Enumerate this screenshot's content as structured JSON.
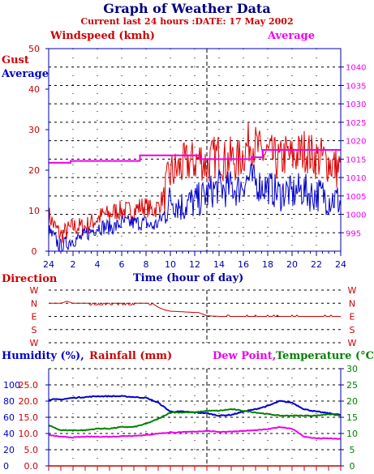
{
  "header": {
    "title": "Graph of Weather Data",
    "subtitle": "Current last 24 hours :DATE: 17 May 2002"
  },
  "colors": {
    "gust": "#dd0000",
    "average": "#0000cc",
    "pressure": "#ee00ee",
    "direction": "#cc0000",
    "humidity": "#0000cc",
    "rainfall": "#cc0000",
    "dew_point": "#ee00ee",
    "temperature": "#008000",
    "axis": "#0000aa"
  },
  "chart_data": [
    {
      "type": "line",
      "name": "wind",
      "legend": {
        "windspeed": "Windspeed (kmh)",
        "average": "Average",
        "gust": "Gust",
        "average_left": "Average"
      },
      "xlabel": "Time (hour of day)",
      "x_ticks": [
        "24",
        "2",
        "4",
        "6",
        "8",
        "10",
        "12",
        "14",
        "16",
        "18",
        "20",
        "22",
        "24"
      ],
      "xlim": [
        0,
        24
      ],
      "ylim_left": [
        0,
        50
      ],
      "y_ticks_left": [
        0,
        10,
        20,
        30,
        40,
        50
      ],
      "ylim_right": [
        990,
        1045
      ],
      "y_ticks_right": [
        995,
        1000,
        1005,
        1010,
        1015,
        1020,
        1025,
        1030,
        1035,
        1040
      ],
      "marker_x": 13,
      "series": [
        {
          "name": "Gust",
          "axis": "left",
          "x": [
            0,
            0.5,
            1,
            1.5,
            2,
            2.5,
            3,
            3.5,
            4,
            4.5,
            5,
            5.5,
            6,
            6.5,
            7,
            7.5,
            8,
            8.5,
            9,
            9.5,
            10,
            10.5,
            11,
            11.5,
            12,
            12.5,
            13,
            13.5,
            14,
            14.5,
            15,
            15.5,
            16,
            16.5,
            17,
            17.5,
            18,
            18.5,
            19,
            19.5,
            20,
            20.5,
            21,
            21.5,
            22,
            22.5,
            23,
            23.5,
            24
          ],
          "values": [
            9,
            6,
            4,
            5,
            6,
            6,
            6,
            7,
            8,
            9,
            9,
            10,
            10,
            10,
            10,
            11,
            11,
            10,
            11,
            14,
            19,
            20,
            21,
            22,
            22,
            23,
            21,
            23,
            24,
            22,
            23,
            22,
            24,
            27,
            26,
            24,
            24,
            23,
            22,
            24,
            23,
            24,
            25,
            24,
            23,
            23,
            22,
            21,
            20
          ]
        },
        {
          "name": "Average",
          "axis": "left",
          "x": [
            0,
            0.5,
            1,
            1.5,
            2,
            2.5,
            3,
            3.5,
            4,
            4.5,
            5,
            5.5,
            6,
            6.5,
            7,
            7.5,
            8,
            8.5,
            9,
            9.5,
            10,
            10.5,
            11,
            11.5,
            12,
            12.5,
            13,
            13.5,
            14,
            14.5,
            15,
            15.5,
            16,
            16.5,
            17,
            17.5,
            18,
            18.5,
            19,
            19.5,
            20,
            20.5,
            21,
            21.5,
            22,
            22.5,
            23,
            23.5,
            24
          ],
          "values": [
            5,
            3,
            1,
            2,
            3,
            3,
            4,
            5,
            6,
            6,
            6,
            6,
            7,
            7,
            7,
            7,
            7,
            6,
            7,
            9,
            13,
            12,
            11,
            12,
            12,
            13,
            14,
            15,
            16,
            15,
            16,
            15,
            17,
            18,
            17,
            16,
            16,
            15,
            14,
            15,
            14,
            15,
            15,
            14,
            14,
            14,
            13,
            13,
            12
          ]
        },
        {
          "name": "Pressure",
          "axis": "right",
          "x": [
            0,
            1.8,
            1.8,
            7.5,
            7.5,
            12.4,
            12.4,
            16.7,
            16.7,
            17.6,
            17.6,
            24
          ],
          "values": [
            1014,
            1014,
            1014.5,
            1014.5,
            1016,
            1016,
            1015,
            1015,
            1015.5,
            1015.5,
            1017.5,
            1017.5
          ]
        }
      ]
    },
    {
      "type": "line",
      "name": "direction",
      "legend": {
        "direction": "Direction"
      },
      "y_categories": [
        "W",
        "S",
        "E",
        "N",
        "W"
      ],
      "xlim": [
        0,
        24
      ],
      "marker_x": 13,
      "series": [
        {
          "name": "Direction",
          "x": [
            0,
            1,
            1.5,
            2,
            3,
            6,
            8.5,
            9,
            9.5,
            10,
            12,
            12.3,
            13,
            14,
            18,
            20,
            24
          ],
          "values": [
            3,
            3,
            3.15,
            3,
            3,
            3,
            3,
            2.7,
            2.5,
            2.4,
            2.3,
            2.3,
            2.05,
            2,
            2,
            2,
            2
          ]
        }
      ]
    },
    {
      "type": "line",
      "name": "humidity",
      "legend": {
        "humidity": "Humidity (%),",
        "rainfall": "Rainfall (mm)",
        "dew_point": "Dew Point,",
        "temperature": "Temperature (°C)"
      },
      "x_ticks": [
        "24",
        "2",
        "4",
        "6",
        "8",
        "10",
        "12",
        "14",
        "16",
        "18",
        "20",
        "22",
        "24"
      ],
      "xlim": [
        0,
        24
      ],
      "y_ticks_humidity": [
        0,
        20,
        40,
        60,
        80,
        100
      ],
      "y_ticks_rainfall": [
        "0.0",
        "5.0",
        "10.0",
        "15.0",
        "20.0",
        "25.0"
      ],
      "y_ticks_temperature": [
        0,
        5,
        10,
        15,
        20,
        25,
        30
      ],
      "ylim_temperature": [
        0,
        30
      ],
      "marker_x": 13,
      "series": [
        {
          "name": "Humidity",
          "axis": "humidity",
          "x": [
            0,
            1,
            2,
            3,
            4,
            5,
            6,
            7,
            8,
            9,
            10,
            11,
            12,
            13,
            14,
            15,
            16,
            17,
            18,
            19,
            20,
            21,
            22,
            23,
            24
          ],
          "values": [
            82,
            82,
            84,
            85,
            86,
            86,
            86,
            85,
            84,
            78,
            67,
            67,
            66,
            65,
            62,
            63,
            67,
            70,
            74,
            80,
            78,
            70,
            67,
            65,
            63
          ]
        },
        {
          "name": "Temperature",
          "axis": "temperature",
          "x": [
            0,
            1,
            2,
            3,
            4,
            5,
            6,
            7,
            8,
            9,
            10,
            11,
            12,
            13,
            14,
            15,
            16,
            17,
            18,
            19,
            20,
            21,
            22,
            23,
            24
          ],
          "values": [
            12.5,
            11,
            11,
            11,
            11.5,
            11.5,
            12,
            12,
            13,
            14.5,
            16.5,
            16.5,
            16.5,
            17,
            17,
            17.5,
            17,
            16.5,
            16,
            15.5,
            15.5,
            15.5,
            15.5,
            16,
            15.5
          ]
        },
        {
          "name": "Dew Point",
          "axis": "temperature",
          "x": [
            0,
            1,
            2,
            3,
            4,
            5,
            6,
            7,
            8,
            9,
            10,
            11,
            12,
            13,
            14,
            15,
            16,
            17,
            18,
            19,
            20,
            21,
            22,
            23,
            24
          ],
          "values": [
            9.5,
            9,
            8.8,
            9,
            9,
            9,
            9.2,
            9.3,
            9.5,
            10,
            10.3,
            10.4,
            10.6,
            10.8,
            10.5,
            10.6,
            10.8,
            11,
            11.3,
            12,
            11.5,
            9,
            8.5,
            8.5,
            8.3
          ]
        }
      ]
    }
  ]
}
